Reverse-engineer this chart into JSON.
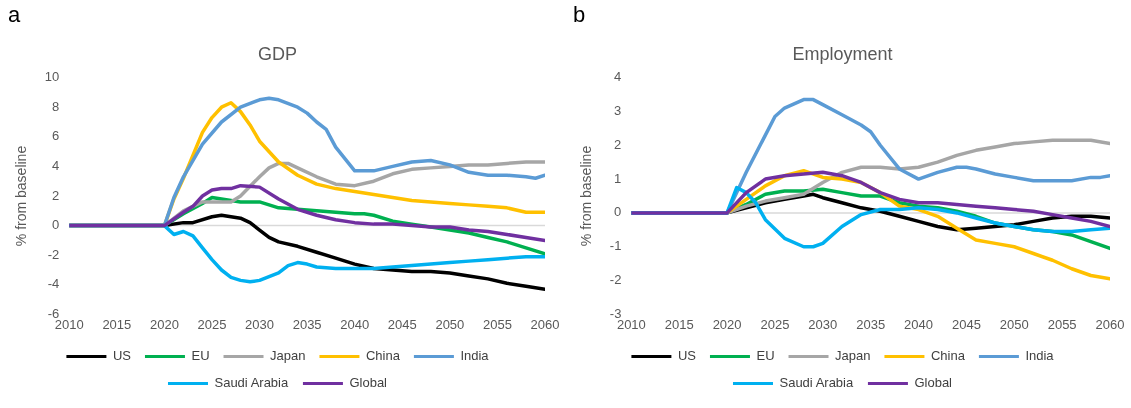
{
  "chart_data": [
    {
      "type": "line",
      "title": "GDP",
      "ylabel": "% from baseline",
      "annotations": [
        "a"
      ],
      "xlim": [
        2010,
        2060
      ],
      "xticks": [
        2010,
        2015,
        2020,
        2025,
        2030,
        2035,
        2040,
        2045,
        2050,
        2055,
        2060
      ],
      "ylim": [
        -6,
        10
      ],
      "yticks": [
        -6,
        -4,
        -2,
        0,
        2,
        4,
        6,
        8,
        10
      ],
      "grid": false,
      "ref_lines": [
        {
          "axis": "y",
          "value": 0,
          "color": "#d9d9d9"
        }
      ],
      "legend": "bottom",
      "marker": "none",
      "line_style": "solid",
      "series": [
        {
          "name": "US",
          "color": "#000000",
          "x": [
            2010,
            2020,
            2022,
            2023,
            2025,
            2026,
            2027,
            2028,
            2029,
            2030,
            2031,
            2032,
            2034,
            2036,
            2038,
            2040,
            2042,
            2044,
            2046,
            2048,
            2050,
            2052,
            2054,
            2056,
            2058,
            2060
          ],
          "values": [
            0,
            0,
            0.2,
            0.2,
            0.6,
            0.7,
            0.6,
            0.5,
            0.2,
            -0.3,
            -0.8,
            -1.1,
            -1.4,
            -1.8,
            -2.2,
            -2.6,
            -2.9,
            -3.0,
            -3.1,
            -3.1,
            -3.2,
            -3.4,
            -3.6,
            -3.9,
            -4.1,
            -4.3
          ]
        },
        {
          "name": "EU",
          "color": "#00b050",
          "x": [
            2010,
            2020,
            2022,
            2024,
            2025,
            2026,
            2028,
            2030,
            2032,
            2034,
            2036,
            2038,
            2040,
            2041,
            2042,
            2044,
            2046,
            2048,
            2050,
            2052,
            2054,
            2056,
            2058,
            2060
          ],
          "values": [
            0,
            0,
            0.8,
            1.5,
            1.9,
            1.8,
            1.6,
            1.6,
            1.2,
            1.1,
            1.0,
            0.9,
            0.8,
            0.8,
            0.7,
            0.3,
            0.1,
            -0.1,
            -0.3,
            -0.5,
            -0.8,
            -1.1,
            -1.5,
            -1.9
          ]
        },
        {
          "name": "Japan",
          "color": "#a6a6a6",
          "x": [
            2010,
            2020,
            2022,
            2024,
            2026,
            2027,
            2028,
            2030,
            2031,
            2032,
            2033,
            2034,
            2036,
            2038,
            2040,
            2042,
            2044,
            2046,
            2048,
            2050,
            2052,
            2054,
            2056,
            2058,
            2060
          ],
          "values": [
            0,
            0,
            1.0,
            1.6,
            1.6,
            1.6,
            2.0,
            3.3,
            3.9,
            4.2,
            4.2,
            3.9,
            3.3,
            2.8,
            2.7,
            3.0,
            3.5,
            3.8,
            3.9,
            4.0,
            4.1,
            4.1,
            4.2,
            4.3,
            4.3
          ]
        },
        {
          "name": "China",
          "color": "#ffc000",
          "x": [
            2010,
            2020,
            2021,
            2022,
            2024,
            2025,
            2026,
            2027,
            2028,
            2029,
            2030,
            2032,
            2034,
            2036,
            2038,
            2040,
            2042,
            2044,
            2046,
            2048,
            2050,
            2052,
            2054,
            2056,
            2058,
            2060
          ],
          "values": [
            0,
            0,
            1.8,
            3.2,
            6.3,
            7.3,
            8.0,
            8.3,
            7.7,
            6.8,
            5.7,
            4.3,
            3.4,
            2.8,
            2.5,
            2.3,
            2.1,
            1.9,
            1.7,
            1.6,
            1.5,
            1.4,
            1.3,
            1.2,
            0.9,
            0.9
          ]
        },
        {
          "name": "India",
          "color": "#5b9bd5",
          "x": [
            2010,
            2020,
            2021,
            2022,
            2024,
            2026,
            2028,
            2030,
            2031,
            2032,
            2034,
            2035,
            2036,
            2037,
            2038,
            2040,
            2042,
            2044,
            2046,
            2048,
            2050,
            2052,
            2054,
            2056,
            2058,
            2059,
            2060
          ],
          "values": [
            0,
            0,
            1.9,
            3.3,
            5.5,
            7.0,
            8.0,
            8.5,
            8.6,
            8.5,
            8.0,
            7.6,
            7.0,
            6.5,
            5.3,
            3.7,
            3.7,
            4.0,
            4.3,
            4.4,
            4.1,
            3.6,
            3.4,
            3.4,
            3.3,
            3.2,
            3.4
          ]
        },
        {
          "name": "Saudi Arabia",
          "color": "#00b0f0",
          "x": [
            2010,
            2020,
            2021,
            2022,
            2023,
            2024,
            2025,
            2026,
            2027,
            2028,
            2029,
            2030,
            2032,
            2033,
            2034,
            2035,
            2036,
            2038,
            2040,
            2042,
            2044,
            2046,
            2048,
            2050,
            2052,
            2054,
            2056,
            2058,
            2060
          ],
          "values": [
            0,
            0,
            -0.6,
            -0.4,
            -0.7,
            -1.5,
            -2.3,
            -3.0,
            -3.5,
            -3.7,
            -3.8,
            -3.7,
            -3.2,
            -2.7,
            -2.5,
            -2.6,
            -2.8,
            -2.9,
            -2.9,
            -2.9,
            -2.8,
            -2.7,
            -2.6,
            -2.5,
            -2.4,
            -2.3,
            -2.2,
            -2.1,
            -2.1
          ]
        },
        {
          "name": "Global",
          "color": "#7030a0",
          "x": [
            2010,
            2020,
            2022,
            2023,
            2024,
            2025,
            2026,
            2027,
            2028,
            2030,
            2032,
            2034,
            2036,
            2038,
            2040,
            2042,
            2044,
            2046,
            2048,
            2050,
            2052,
            2054,
            2056,
            2058,
            2060
          ],
          "values": [
            0,
            0,
            0.9,
            1.3,
            2.0,
            2.4,
            2.5,
            2.5,
            2.7,
            2.6,
            1.8,
            1.1,
            0.7,
            0.4,
            0.2,
            0.1,
            0.1,
            0.0,
            -0.1,
            -0.1,
            -0.3,
            -0.4,
            -0.6,
            -0.8,
            -1.0
          ]
        }
      ]
    },
    {
      "type": "line",
      "title": "Employment",
      "ylabel": "% from baseline",
      "annotations": [
        "b"
      ],
      "xlim": [
        2010,
        2060
      ],
      "xticks": [
        2010,
        2015,
        2020,
        2025,
        2030,
        2035,
        2040,
        2045,
        2050,
        2055,
        2060
      ],
      "ylim": [
        -3,
        4
      ],
      "yticks": [
        -3,
        -2,
        -1,
        0,
        1,
        2,
        3,
        4
      ],
      "grid": false,
      "ref_lines": [
        {
          "axis": "y",
          "value": 0,
          "color": "#d9d9d9"
        }
      ],
      "legend": "bottom",
      "marker": "none",
      "line_style": "solid",
      "series": [
        {
          "name": "US",
          "color": "#000000",
          "x": [
            2010,
            2020,
            2022,
            2024,
            2026,
            2028,
            2029,
            2030,
            2032,
            2034,
            2036,
            2038,
            2040,
            2042,
            2044,
            2046,
            2048,
            2050,
            2052,
            2054,
            2056,
            2058,
            2060
          ],
          "values": [
            0,
            0,
            0.15,
            0.3,
            0.4,
            0.5,
            0.55,
            0.45,
            0.3,
            0.15,
            0.05,
            -0.1,
            -0.25,
            -0.4,
            -0.5,
            -0.45,
            -0.4,
            -0.35,
            -0.25,
            -0.15,
            -0.1,
            -0.1,
            -0.15
          ]
        },
        {
          "name": "EU",
          "color": "#00b050",
          "x": [
            2010,
            2020,
            2022,
            2024,
            2026,
            2028,
            2030,
            2032,
            2034,
            2036,
            2038,
            2040,
            2042,
            2044,
            2046,
            2048,
            2050,
            2052,
            2054,
            2056,
            2058,
            2060
          ],
          "values": [
            0,
            0,
            0.25,
            0.55,
            0.65,
            0.65,
            0.7,
            0.6,
            0.5,
            0.5,
            0.3,
            0.2,
            0.15,
            0.05,
            -0.1,
            -0.3,
            -0.4,
            -0.5,
            -0.55,
            -0.65,
            -0.85,
            -1.05
          ]
        },
        {
          "name": "Japan",
          "color": "#a6a6a6",
          "x": [
            2010,
            2020,
            2022,
            2024,
            2026,
            2028,
            2030,
            2032,
            2034,
            2036,
            2038,
            2040,
            2042,
            2044,
            2046,
            2048,
            2050,
            2052,
            2054,
            2056,
            2058,
            2060
          ],
          "values": [
            0,
            0,
            0.2,
            0.35,
            0.45,
            0.55,
            0.9,
            1.2,
            1.35,
            1.35,
            1.3,
            1.35,
            1.5,
            1.7,
            1.85,
            1.95,
            2.05,
            2.1,
            2.15,
            2.15,
            2.15,
            2.05
          ]
        },
        {
          "name": "China",
          "color": "#ffc000",
          "x": [
            2010,
            2020,
            2022,
            2024,
            2026,
            2028,
            2030,
            2032,
            2034,
            2036,
            2038,
            2040,
            2042,
            2044,
            2046,
            2048,
            2050,
            2052,
            2054,
            2056,
            2058,
            2060
          ],
          "values": [
            0,
            0,
            0.4,
            0.8,
            1.1,
            1.25,
            1.05,
            1.0,
            0.9,
            0.6,
            0.2,
            0.1,
            -0.1,
            -0.45,
            -0.8,
            -0.9,
            -1.0,
            -1.2,
            -1.4,
            -1.65,
            -1.85,
            -1.95
          ]
        },
        {
          "name": "India",
          "color": "#5b9bd5",
          "x": [
            2010,
            2020,
            2022,
            2024,
            2025,
            2026,
            2028,
            2029,
            2030,
            2032,
            2034,
            2035,
            2036,
            2038,
            2040,
            2042,
            2044,
            2045,
            2046,
            2048,
            2050,
            2052,
            2054,
            2056,
            2058,
            2059,
            2060
          ],
          "values": [
            0,
            0,
            1.2,
            2.3,
            2.85,
            3.1,
            3.35,
            3.35,
            3.2,
            2.9,
            2.6,
            2.4,
            2.0,
            1.3,
            1.0,
            1.2,
            1.35,
            1.35,
            1.3,
            1.15,
            1.05,
            0.95,
            0.95,
            0.95,
            1.05,
            1.05,
            1.1
          ]
        },
        {
          "name": "Saudi Arabia",
          "color": "#00b0f0",
          "x": [
            2010,
            2020,
            2021,
            2022,
            2023,
            2024,
            2026,
            2028,
            2029,
            2030,
            2032,
            2034,
            2036,
            2038,
            2040,
            2042,
            2044,
            2046,
            2048,
            2050,
            2052,
            2054,
            2056,
            2058,
            2060
          ],
          "values": [
            0,
            0,
            0.75,
            0.6,
            0.3,
            -0.2,
            -0.75,
            -1.0,
            -1.0,
            -0.9,
            -0.4,
            -0.05,
            0.1,
            0.1,
            0.15,
            0.1,
            0.0,
            -0.15,
            -0.3,
            -0.4,
            -0.5,
            -0.55,
            -0.55,
            -0.5,
            -0.45
          ]
        },
        {
          "name": "Global",
          "color": "#7030a0",
          "x": [
            2010,
            2020,
            2022,
            2024,
            2026,
            2028,
            2030,
            2032,
            2034,
            2036,
            2038,
            2040,
            2042,
            2044,
            2046,
            2048,
            2050,
            2052,
            2054,
            2056,
            2058,
            2060
          ],
          "values": [
            0,
            0,
            0.6,
            1.0,
            1.1,
            1.15,
            1.2,
            1.1,
            0.9,
            0.6,
            0.4,
            0.3,
            0.3,
            0.25,
            0.2,
            0.15,
            0.1,
            0.05,
            -0.05,
            -0.15,
            -0.25,
            -0.4
          ]
        }
      ]
    }
  ]
}
